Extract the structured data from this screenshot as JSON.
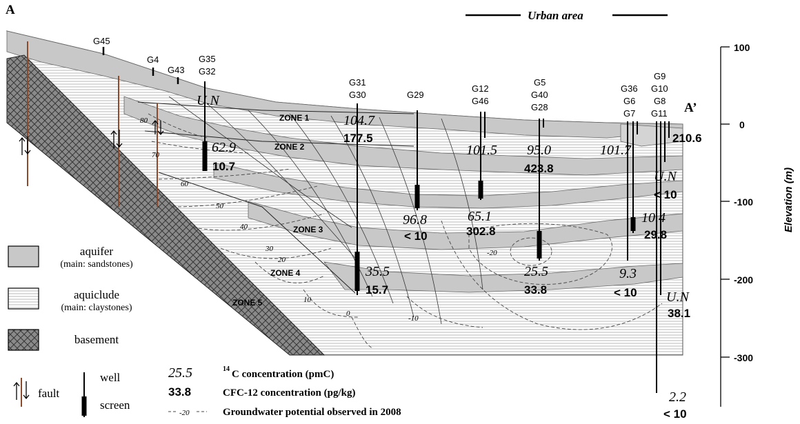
{
  "labels": {
    "section_start": "A",
    "section_end": "A’",
    "urban_area": "Urban area",
    "elevation_axis": "Elevation (m)"
  },
  "elevation_ticks": [
    "100",
    "0",
    "-100",
    "-200",
    "-300"
  ],
  "zones": [
    "ZONE 1",
    "ZONE 2",
    "ZONE 3",
    "ZONE 4",
    "ZONE 5"
  ],
  "contours": [
    "80",
    "70",
    "60",
    "50",
    "40",
    "30",
    "20",
    "10",
    "0",
    "-10",
    "-20"
  ],
  "wells": [
    {
      "ids": [
        "G45"
      ]
    },
    {
      "ids": [
        "G4"
      ]
    },
    {
      "ids": [
        "G43"
      ]
    },
    {
      "ids": [
        "G35",
        "G32"
      ],
      "c14": "U.N",
      "cfc": "",
      "c14b": "62.9",
      "cfcb": "10.7"
    },
    {
      "ids": [
        "G31",
        "G30"
      ],
      "c14": "104.7",
      "cfc": "177.5",
      "c14b": "35.5",
      "cfcb": "15.7"
    },
    {
      "ids": [
        "G29"
      ],
      "c14": "96.8",
      "cfc": "< 10"
    },
    {
      "ids": [
        "G12",
        "G46"
      ],
      "c14": "101.5",
      "cfc": "",
      "c14b": "65.1",
      "cfcb": "302.8"
    },
    {
      "ids": [
        "G5",
        "G40",
        "G28"
      ],
      "c14": "95.0",
      "cfc": "423.8",
      "c14b": "25.5",
      "cfcb": "33.8"
    },
    {
      "ids": [
        "G36",
        "G6",
        "G7"
      ],
      "c14": "101.7",
      "cfc": "",
      "c14b": "10.4",
      "cfcb": "29.8",
      "c14c": "9.3",
      "cfcc": "< 10"
    },
    {
      "ids": [
        "G9",
        "G10",
        "G8",
        "G11"
      ],
      "cfc": "210.6",
      "c14b": "U.N",
      "cfcb": "< 10",
      "c14c": "U.N",
      "cfcc": "38.1",
      "c14d": "2.2",
      "cfcd": "< 10"
    }
  ],
  "legend": {
    "aquifer": "aquifer",
    "aquifer_sub": "(main: sandstones)",
    "aquiclude": "aquiclude",
    "aquiclude_sub": "(main: claystones)",
    "basement": "basement",
    "fault": "fault",
    "well": "well",
    "screen": "screen",
    "c14_example": "25.5",
    "c14_label": "C concentration (pmC)",
    "c14_sup": "14",
    "cfc_example": "33.8",
    "cfc_label": "CFC-12 concentration (pg/kg)",
    "gw_example": "-20",
    "gw_label": "Groundwater potential observed in 2008"
  }
}
